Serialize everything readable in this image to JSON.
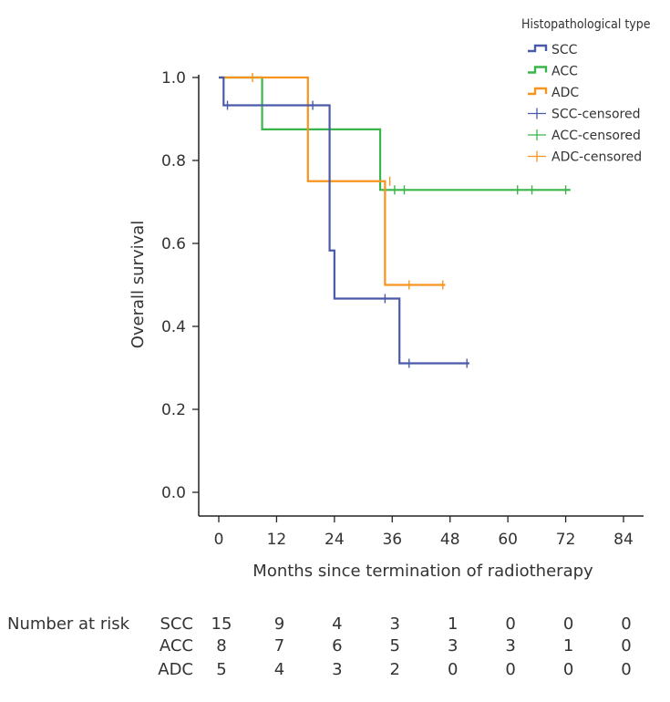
{
  "chart_data": {
    "type": "line",
    "subtype": "kaplan-meier",
    "xlabel": "Months since termination of radiotherapy",
    "ylabel": "Overall survival",
    "xlim": [
      -2,
      88
    ],
    "ylim": [
      -0.05,
      1.1
    ],
    "x_ticks": [
      0,
      12,
      24,
      36,
      48,
      60,
      72,
      84
    ],
    "y_ticks": [
      0.0,
      0.2,
      0.4,
      0.6,
      0.8,
      1.0
    ],
    "y_tick_labels": [
      "0.0",
      "0.2",
      "0.4",
      "0.6",
      "0.8",
      "1.0"
    ],
    "legend": {
      "title": "Histopathological type",
      "position": "top-right",
      "entries": [
        {
          "label": "SCC",
          "kind": "line",
          "color": "#4a5aa8"
        },
        {
          "label": "ACC",
          "kind": "line",
          "color": "#39b54a"
        },
        {
          "label": "ADC",
          "kind": "line",
          "color": "#f7941d"
        },
        {
          "label": "SCC-censored",
          "kind": "censor",
          "color": "#4a5aa8"
        },
        {
          "label": "ACC-censored",
          "kind": "censor",
          "color": "#39b54a"
        },
        {
          "label": "ADC-censored",
          "kind": "censor",
          "color": "#f7941d"
        }
      ]
    },
    "series": [
      {
        "name": "SCC",
        "color": "#4a5aa8",
        "steps": [
          [
            0,
            1.0
          ],
          [
            1,
            0.933
          ],
          [
            23,
            0.583
          ],
          [
            24,
            0.467
          ],
          [
            37.5,
            0.311
          ],
          [
            52,
            0.311
          ]
        ],
        "censored": [
          [
            1.8,
            0.933
          ],
          [
            19.5,
            0.933
          ],
          [
            34.5,
            0.467
          ],
          [
            39.5,
            0.311
          ],
          [
            51.5,
            0.311
          ]
        ]
      },
      {
        "name": "ACC",
        "color": "#39b54a",
        "steps": [
          [
            0,
            1.0
          ],
          [
            9,
            0.875
          ],
          [
            33.5,
            0.729
          ],
          [
            73,
            0.729
          ]
        ],
        "censored": [
          [
            36.5,
            0.729
          ],
          [
            38.5,
            0.729
          ],
          [
            62,
            0.729
          ],
          [
            65,
            0.729
          ],
          [
            72,
            0.729
          ]
        ]
      },
      {
        "name": "ADC",
        "color": "#f7941d",
        "steps": [
          [
            0,
            1.0
          ],
          [
            18.5,
            0.75
          ],
          [
            34.5,
            0.5
          ],
          [
            47,
            0.5
          ]
        ],
        "censored": [
          [
            7,
            1.0
          ],
          [
            35.5,
            0.75
          ],
          [
            39.5,
            0.5
          ],
          [
            46.5,
            0.5
          ]
        ]
      }
    ]
  },
  "risk_table": {
    "title": "Number at risk",
    "times": [
      0,
      12,
      24,
      36,
      48,
      60,
      72,
      84
    ],
    "rows": [
      {
        "label": "SCC",
        "values": [
          "15",
          "9",
          "4",
          "3",
          "1",
          "0",
          "0",
          "0"
        ]
      },
      {
        "label": "ACC",
        "values": [
          "8",
          "7",
          "6",
          "5",
          "3",
          "3",
          "1",
          "0"
        ]
      },
      {
        "label": "ADC",
        "values": [
          "5",
          "4",
          "3",
          "2",
          "0",
          "0",
          "0",
          "0"
        ]
      }
    ]
  }
}
